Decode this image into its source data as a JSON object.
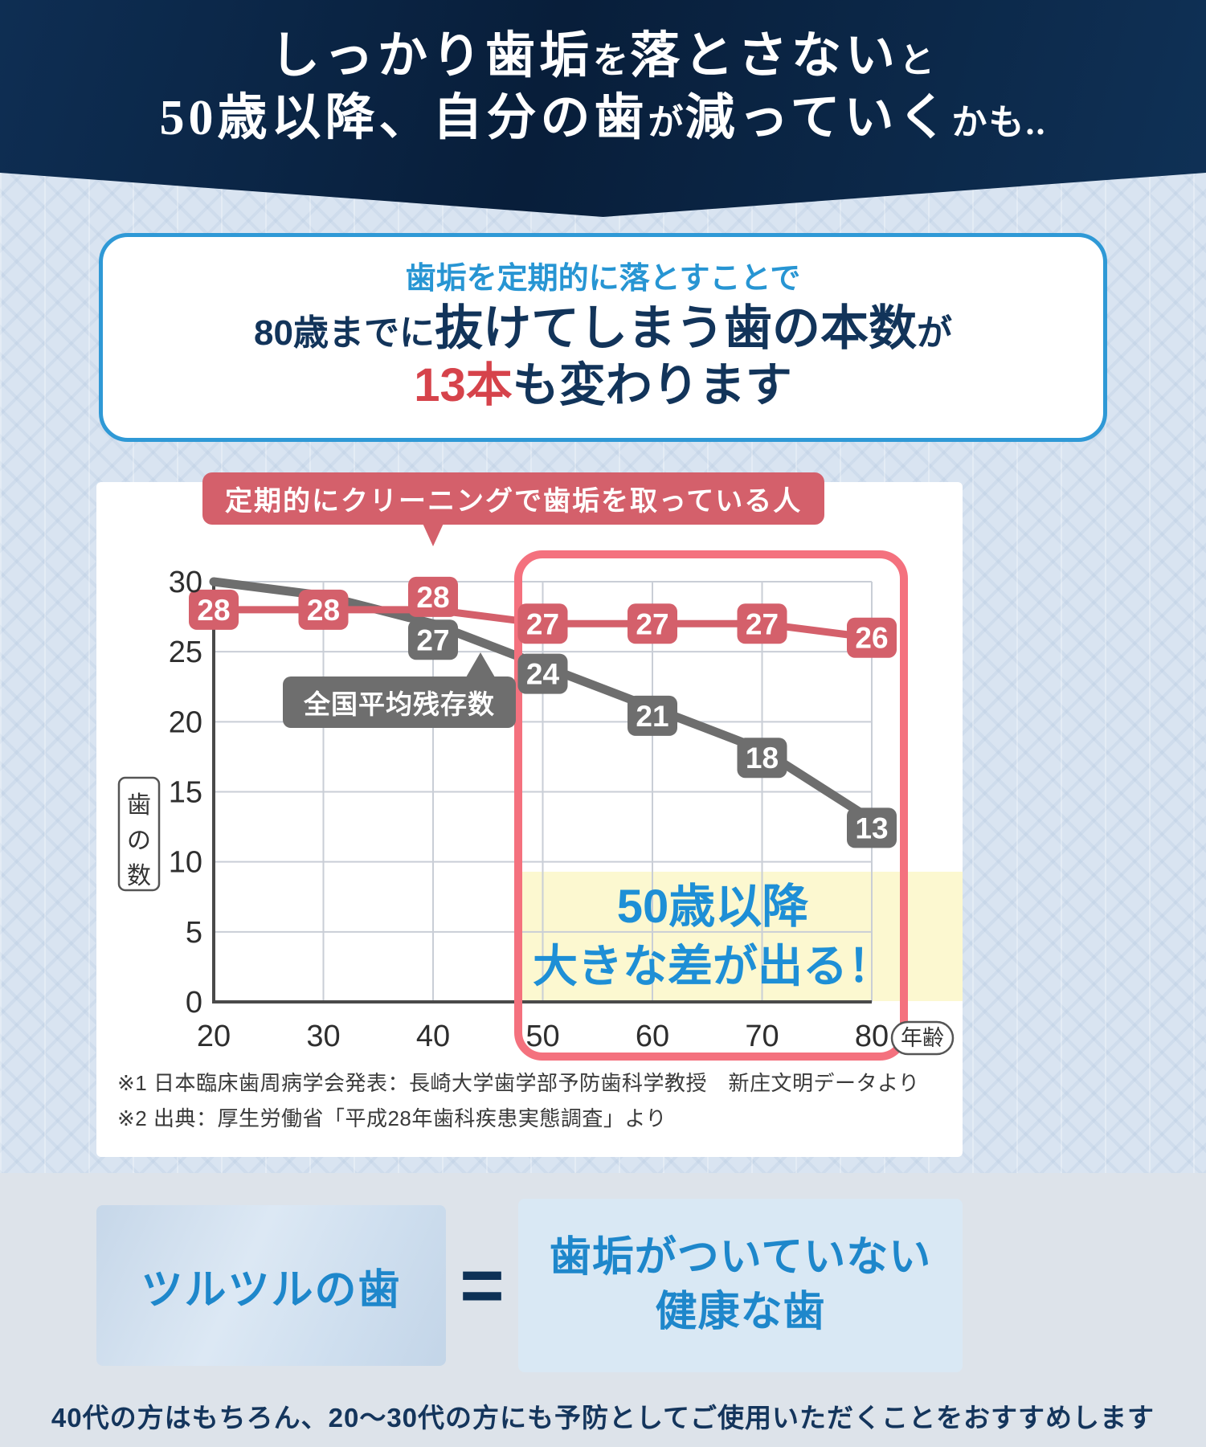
{
  "header": {
    "line1_segments": [
      {
        "text": "しっかり歯垢",
        "size": "lg"
      },
      {
        "text": "を",
        "size": "sm"
      },
      {
        "text": "落とさない",
        "size": "lg"
      },
      {
        "text": "と",
        "size": "sm"
      }
    ],
    "line2_segments": [
      {
        "text": "50歳以降、自分の歯",
        "size": "lg"
      },
      {
        "text": "が",
        "size": "sm"
      },
      {
        "text": "減っていく",
        "size": "lg"
      },
      {
        "text": "かも..",
        "size": "sm"
      }
    ]
  },
  "info_box": {
    "line1_segments": [
      {
        "text": "歯垢を定期的に落とすことで",
        "size": "md",
        "color": "blue"
      }
    ],
    "line2_segments": [
      {
        "text": "80歳までに",
        "size": "md2",
        "color": "navy"
      },
      {
        "text": "抜けてしまう歯の本数",
        "size": "lg",
        "color": "navy"
      },
      {
        "text": "が",
        "size": "md2",
        "color": "navy"
      }
    ],
    "line3_segments": [
      {
        "text": "13本",
        "size": "lg2",
        "color": "red"
      },
      {
        "text": "も変わります",
        "size": "lg2",
        "color": "navy"
      }
    ]
  },
  "chart_data": {
    "type": "line",
    "x": [
      20,
      30,
      40,
      50,
      60,
      70,
      80
    ],
    "x_axis_unit": "年齢",
    "y_axis_label": "歯の数",
    "ylim": [
      0,
      30
    ],
    "y_ticks": [
      0,
      5,
      10,
      15,
      20,
      25,
      30
    ],
    "series": [
      {
        "name": "定期的にクリーニングで歯垢を取っている人",
        "color": "#d4606b",
        "values": [
          28,
          28,
          28,
          27,
          27,
          27,
          26
        ],
        "label_start_index": 0
      },
      {
        "name": "全国平均残存数",
        "color": "#6e6e6e",
        "values": [
          30,
          29,
          27,
          24,
          21,
          18,
          13
        ],
        "label_start_index": 2
      }
    ],
    "highlight": {
      "x_range": [
        50,
        80
      ],
      "line1": "50歳以降",
      "line2": "大きな差が出る！",
      "box_color": "#f4717e",
      "band_color": "#fcf8d0",
      "text_color": "#1e8fd6"
    },
    "footnotes": [
      "※1 日本臨床歯周病学会発表：長崎大学歯学部予防歯科学教授　新庄文明データより",
      "※2 出典：厚生労働省「平成28年歯科疾患実態調査」より"
    ]
  },
  "equation": {
    "left": "ツルツルの歯",
    "equals": "=",
    "right_line1": "歯垢がついていない",
    "right_line2": "健康な歯"
  },
  "closing": "40代の方はもちろん、20〜30代の方にも予防としてご使用いただくことをおすすめします"
}
